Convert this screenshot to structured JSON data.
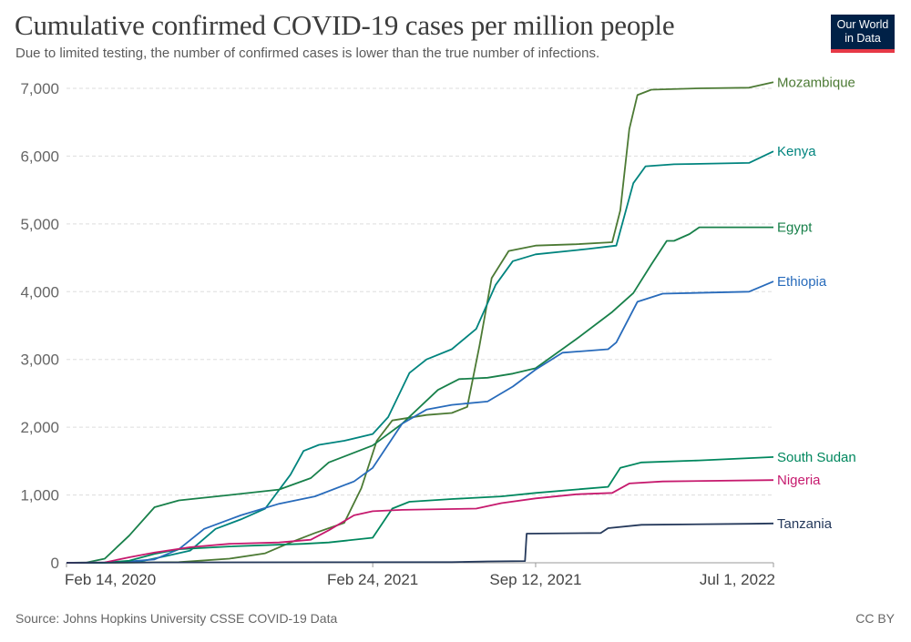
{
  "header": {
    "title": "Cumulative confirmed COVID-19 cases per million people",
    "subtitle": "Due to limited testing, the number of confirmed cases is lower than the true number of infections.",
    "logo_line1": "Our World",
    "logo_line2": "in Data"
  },
  "footer": {
    "source": "Source: Johns Hopkins University CSSE COVID-19 Data",
    "license": "CC BY"
  },
  "chart_data": {
    "type": "line",
    "ylim": [
      0,
      7000
    ],
    "yticks": [
      0,
      1000,
      2000,
      3000,
      4000,
      5000,
      6000,
      7000
    ],
    "ytick_labels": [
      "0",
      "1,000",
      "2,000",
      "3,000",
      "4,000",
      "5,000",
      "6,000",
      "7,000"
    ],
    "xlim": [
      "2020-02-14",
      "2022-07-01"
    ],
    "xticks": [
      "2020-02-14",
      "2021-02-24",
      "2021-09-12",
      "2022-07-01"
    ],
    "xtick_labels": [
      "Feb 14, 2020",
      "Feb 24, 2021",
      "Sep 12, 2021",
      "Jul 1, 2022"
    ],
    "grid": "horizontal dashed",
    "legend": "labels at line ends",
    "series": [
      {
        "name": "Mozambique",
        "color": "#4c7a34",
        "points": [
          [
            "2020-02-14",
            0
          ],
          [
            "2020-05-01",
            2
          ],
          [
            "2020-07-01",
            10
          ],
          [
            "2020-09-01",
            60
          ],
          [
            "2020-10-15",
            140
          ],
          [
            "2020-11-15",
            300
          ],
          [
            "2020-12-15",
            440
          ],
          [
            "2021-01-20",
            590
          ],
          [
            "2021-02-10",
            1100
          ],
          [
            "2021-03-01",
            1800
          ],
          [
            "2021-03-20",
            2100
          ],
          [
            "2021-05-01",
            2180
          ],
          [
            "2021-06-01",
            2210
          ],
          [
            "2021-06-20",
            2300
          ],
          [
            "2021-07-05",
            3200
          ],
          [
            "2021-07-20",
            4200
          ],
          [
            "2021-08-10",
            4600
          ],
          [
            "2021-09-12",
            4680
          ],
          [
            "2021-11-01",
            4700
          ],
          [
            "2021-12-15",
            4730
          ],
          [
            "2021-12-25",
            5200
          ],
          [
            "2022-01-05",
            6400
          ],
          [
            "2022-01-15",
            6900
          ],
          [
            "2022-02-01",
            6980
          ],
          [
            "2022-04-01",
            7000
          ],
          [
            "2022-06-01",
            7010
          ],
          [
            "2022-07-01",
            7090
          ]
        ]
      },
      {
        "name": "Kenya",
        "color": "#00847e",
        "points": [
          [
            "2020-02-14",
            0
          ],
          [
            "2020-04-01",
            2
          ],
          [
            "2020-05-15",
            20
          ],
          [
            "2020-06-15",
            100
          ],
          [
            "2020-07-15",
            180
          ],
          [
            "2020-08-15",
            500
          ],
          [
            "2020-09-15",
            640
          ],
          [
            "2020-10-15",
            800
          ],
          [
            "2020-11-15",
            1300
          ],
          [
            "2020-12-01",
            1650
          ],
          [
            "2020-12-20",
            1740
          ],
          [
            "2021-01-20",
            1800
          ],
          [
            "2021-02-24",
            1900
          ],
          [
            "2021-03-15",
            2150
          ],
          [
            "2021-04-10",
            2800
          ],
          [
            "2021-05-01",
            3000
          ],
          [
            "2021-06-01",
            3150
          ],
          [
            "2021-07-01",
            3450
          ],
          [
            "2021-07-25",
            4100
          ],
          [
            "2021-08-15",
            4450
          ],
          [
            "2021-09-12",
            4550
          ],
          [
            "2021-11-15",
            4630
          ],
          [
            "2021-12-20",
            4680
          ],
          [
            "2022-01-10",
            5600
          ],
          [
            "2022-01-25",
            5850
          ],
          [
            "2022-03-01",
            5880
          ],
          [
            "2022-06-01",
            5900
          ],
          [
            "2022-07-01",
            6070
          ]
        ]
      },
      {
        "name": "Egypt",
        "color": "#18804a",
        "points": [
          [
            "2020-02-14",
            0
          ],
          [
            "2020-03-10",
            5
          ],
          [
            "2020-04-01",
            60
          ],
          [
            "2020-05-01",
            400
          ],
          [
            "2020-06-01",
            820
          ],
          [
            "2020-07-01",
            920
          ],
          [
            "2020-09-01",
            1000
          ],
          [
            "2020-11-01",
            1080
          ],
          [
            "2020-12-10",
            1250
          ],
          [
            "2021-01-01",
            1480
          ],
          [
            "2021-02-24",
            1730
          ],
          [
            "2021-04-01",
            2050
          ],
          [
            "2021-05-15",
            2550
          ],
          [
            "2021-06-10",
            2710
          ],
          [
            "2021-07-15",
            2730
          ],
          [
            "2021-08-15",
            2790
          ],
          [
            "2021-09-12",
            2870
          ],
          [
            "2021-11-01",
            3300
          ],
          [
            "2021-12-15",
            3700
          ],
          [
            "2022-01-10",
            3980
          ],
          [
            "2022-02-01",
            4400
          ],
          [
            "2022-02-20",
            4750
          ],
          [
            "2022-03-01",
            4750
          ],
          [
            "2022-03-20",
            4850
          ],
          [
            "2022-04-01",
            4950
          ],
          [
            "2022-07-01",
            4950
          ]
        ]
      },
      {
        "name": "Ethiopia",
        "color": "#286bbb",
        "points": [
          [
            "2020-02-14",
            0
          ],
          [
            "2020-04-01",
            5
          ],
          [
            "2020-05-01",
            20
          ],
          [
            "2020-06-01",
            50
          ],
          [
            "2020-07-01",
            200
          ],
          [
            "2020-08-01",
            500
          ],
          [
            "2020-09-15",
            700
          ],
          [
            "2020-11-01",
            870
          ],
          [
            "2020-12-15",
            980
          ],
          [
            "2021-02-01",
            1200
          ],
          [
            "2021-02-24",
            1400
          ],
          [
            "2021-04-01",
            2050
          ],
          [
            "2021-05-01",
            2260
          ],
          [
            "2021-06-01",
            2330
          ],
          [
            "2021-07-15",
            2380
          ],
          [
            "2021-08-15",
            2600
          ],
          [
            "2021-09-12",
            2850
          ],
          [
            "2021-10-15",
            3100
          ],
          [
            "2021-12-10",
            3150
          ],
          [
            "2021-12-20",
            3250
          ],
          [
            "2022-01-15",
            3850
          ],
          [
            "2022-02-15",
            3970
          ],
          [
            "2022-06-01",
            4000
          ],
          [
            "2022-07-01",
            4150
          ]
        ]
      },
      {
        "name": "South Sudan",
        "color": "#00875e",
        "points": [
          [
            "2020-02-14",
            0
          ],
          [
            "2020-04-01",
            2
          ],
          [
            "2020-05-01",
            30
          ],
          [
            "2020-06-01",
            130
          ],
          [
            "2020-07-01",
            200
          ],
          [
            "2020-09-01",
            240
          ],
          [
            "2020-12-01",
            280
          ],
          [
            "2021-01-01",
            300
          ],
          [
            "2021-02-24",
            370
          ],
          [
            "2021-03-20",
            800
          ],
          [
            "2021-04-10",
            900
          ],
          [
            "2021-06-01",
            940
          ],
          [
            "2021-08-01",
            980
          ],
          [
            "2021-09-12",
            1030
          ],
          [
            "2021-12-10",
            1120
          ],
          [
            "2021-12-25",
            1400
          ],
          [
            "2022-01-20",
            1480
          ],
          [
            "2022-04-01",
            1510
          ],
          [
            "2022-07-01",
            1560
          ]
        ]
      },
      {
        "name": "Nigeria",
        "color": "#c61a6e",
        "points": [
          [
            "2020-02-14",
            0
          ],
          [
            "2020-04-01",
            5
          ],
          [
            "2020-05-01",
            80
          ],
          [
            "2020-06-01",
            150
          ],
          [
            "2020-07-15",
            230
          ],
          [
            "2020-09-01",
            280
          ],
          [
            "2020-11-01",
            300
          ],
          [
            "2020-12-10",
            340
          ],
          [
            "2021-01-01",
            480
          ],
          [
            "2021-02-01",
            700
          ],
          [
            "2021-02-24",
            760
          ],
          [
            "2021-04-01",
            780
          ],
          [
            "2021-07-01",
            800
          ],
          [
            "2021-08-01",
            880
          ],
          [
            "2021-09-12",
            950
          ],
          [
            "2021-11-01",
            1010
          ],
          [
            "2021-12-15",
            1030
          ],
          [
            "2022-01-05",
            1170
          ],
          [
            "2022-02-15",
            1200
          ],
          [
            "2022-07-01",
            1220
          ]
        ]
      },
      {
        "name": "Tanzania",
        "color": "#25395b",
        "points": [
          [
            "2020-02-14",
            0
          ],
          [
            "2020-06-01",
            5
          ],
          [
            "2021-01-01",
            8
          ],
          [
            "2021-06-01",
            10
          ],
          [
            "2021-07-15",
            20
          ],
          [
            "2021-08-30",
            25
          ],
          [
            "2021-09-01",
            430
          ],
          [
            "2021-12-01",
            440
          ],
          [
            "2021-12-10",
            510
          ],
          [
            "2022-01-20",
            560
          ],
          [
            "2022-06-01",
            575
          ],
          [
            "2022-07-01",
            580
          ]
        ]
      }
    ],
    "end_labels": [
      {
        "name": "Mozambique",
        "value": 7090
      },
      {
        "name": "Kenya",
        "value": 6070
      },
      {
        "name": "Egypt",
        "value": 4950
      },
      {
        "name": "Ethiopia",
        "value": 4150
      },
      {
        "name": "South Sudan",
        "value": 1560
      },
      {
        "name": "Nigeria",
        "value": 1220
      },
      {
        "name": "Tanzania",
        "value": 580
      }
    ]
  }
}
